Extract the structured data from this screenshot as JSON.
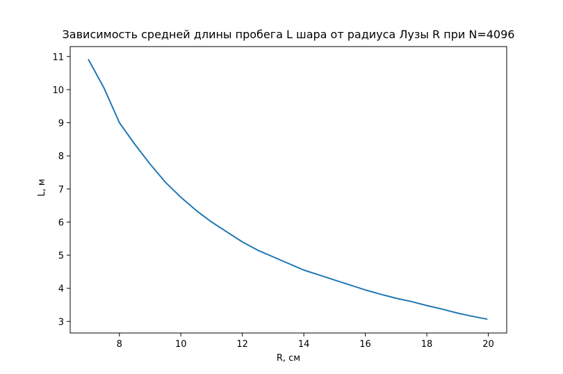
{
  "chart_data": {
    "type": "line",
    "title": "Зависимость средней длины пробега L шара от радиуса Лузы R при N=4096",
    "xlabel": "R, см",
    "ylabel": "L, м",
    "xlim": [
      6.4,
      20.6
    ],
    "ylim": [
      2.65,
      11.3
    ],
    "xticks": [
      8,
      10,
      12,
      14,
      16,
      18,
      20
    ],
    "yticks": [
      3,
      4,
      5,
      6,
      7,
      8,
      9,
      10,
      11
    ],
    "grid": false,
    "legend": "none",
    "series": [
      {
        "color": "#1f77b4",
        "x": [
          7.0,
          7.5,
          8.0,
          8.5,
          9.0,
          9.5,
          10.0,
          10.5,
          11.0,
          11.5,
          12.0,
          12.5,
          13.0,
          13.5,
          14.0,
          14.5,
          15.0,
          15.5,
          16.0,
          16.5,
          17.0,
          17.5,
          18.0,
          18.5,
          19.0,
          19.5,
          19.95
        ],
        "y": [
          10.9,
          10.05,
          9.0,
          8.35,
          7.75,
          7.2,
          6.75,
          6.35,
          6.0,
          5.7,
          5.4,
          5.15,
          4.95,
          4.75,
          4.55,
          4.4,
          4.25,
          4.1,
          3.95,
          3.82,
          3.7,
          3.6,
          3.48,
          3.37,
          3.25,
          3.15,
          3.07
        ]
      }
    ]
  }
}
